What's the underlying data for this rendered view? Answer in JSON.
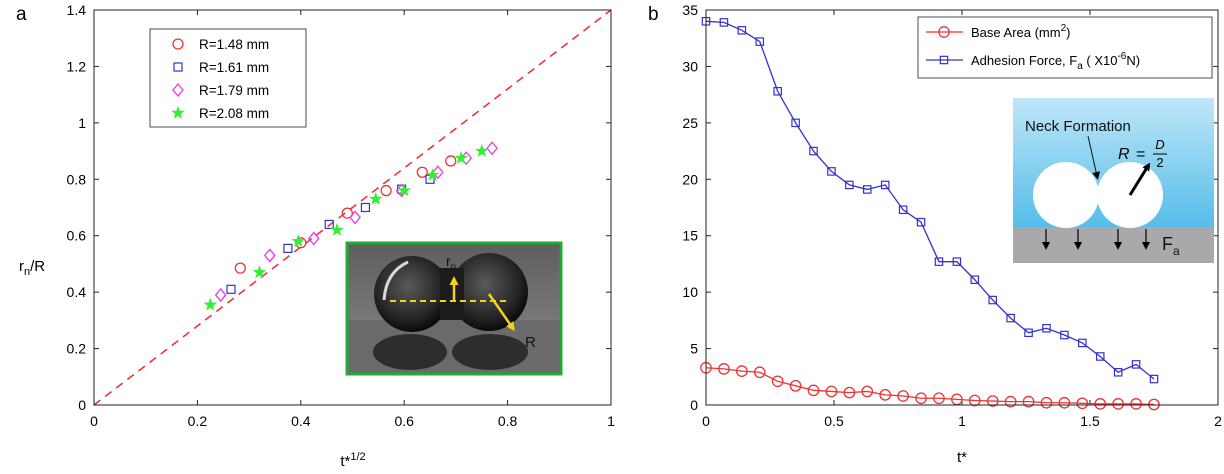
{
  "colors": {
    "r148": "#ee3333",
    "r161": "#3333cc",
    "r179": "#ee33ee",
    "r208": "#33ee33",
    "base_area": "#ee3333",
    "adhesion": "#3333cc",
    "diagonal": "#ee3333",
    "inset_frame": "#22aa33",
    "annot_arrow": "#f2d21a",
    "sky": "#7ecdf1",
    "substrate": "#a9a9a9"
  },
  "chart_data": [
    {
      "panel_label": "a",
      "type": "scatter",
      "xlabel": "t*",
      "xlabel_sup": "1/2",
      "ylabel": "r",
      "ylabel_sub": "n",
      "ylabel_tail": "/R",
      "xlim": [
        0,
        1
      ],
      "ylim": [
        0,
        1.4
      ],
      "xticks": [
        0,
        0.2,
        0.4,
        0.6,
        0.8,
        1
      ],
      "xtick_labels": [
        "0",
        "0.2",
        "0.4",
        "0.6",
        "0.8",
        "1"
      ],
      "yticks": [
        0,
        0.2,
        0.4,
        0.6,
        0.8,
        1,
        1.2,
        1.4
      ],
      "ytick_labels": [
        "0",
        "0.2",
        "0.4",
        "0.6",
        "0.8",
        "1",
        "1.2",
        "1.4"
      ],
      "grid": false,
      "legend_position": "top-left",
      "reference_line": {
        "style": "dashed",
        "from": [
          0,
          0
        ],
        "to": [
          1,
          1.4
        ]
      },
      "series": [
        {
          "name": "R=1.48 mm",
          "marker": "circle",
          "color_key": "r148",
          "x": [
            0.283,
            0.4,
            0.49,
            0.565,
            0.635,
            0.69
          ],
          "y": [
            0.485,
            0.575,
            0.68,
            0.76,
            0.825,
            0.865
          ]
        },
        {
          "name": "R=1.61 mm",
          "marker": "square",
          "color_key": "r161",
          "x": [
            0.265,
            0.375,
            0.455,
            0.525,
            0.595,
            0.65
          ],
          "y": [
            0.41,
            0.555,
            0.64,
            0.7,
            0.765,
            0.8
          ]
        },
        {
          "name": "R=1.79 mm",
          "marker": "diamond",
          "color_key": "r179",
          "x": [
            0.245,
            0.34,
            0.425,
            0.505,
            0.595,
            0.665,
            0.72,
            0.77
          ],
          "y": [
            0.39,
            0.53,
            0.59,
            0.665,
            0.76,
            0.825,
            0.875,
            0.91
          ]
        },
        {
          "name": "R=2.08 mm",
          "marker": "star",
          "color_key": "r208",
          "x": [
            0.225,
            0.32,
            0.395,
            0.47,
            0.545,
            0.6,
            0.655,
            0.71,
            0.75
          ],
          "y": [
            0.355,
            0.47,
            0.58,
            0.62,
            0.73,
            0.76,
            0.815,
            0.875,
            0.9
          ]
        }
      ],
      "inset": {
        "type": "photo",
        "label_rn": "r",
        "label_rn_sub": "n",
        "label_R": "R"
      }
    },
    {
      "panel_label": "b",
      "type": "line",
      "xlabel": "t*",
      "ylabel": "",
      "xlim": [
        0,
        2
      ],
      "ylim": [
        0,
        35
      ],
      "xticks": [
        0,
        0.5,
        1,
        1.5,
        2
      ],
      "xtick_labels": [
        "0",
        "0.5",
        "1",
        "1.5",
        "2"
      ],
      "yticks": [
        0,
        5,
        10,
        15,
        20,
        25,
        30,
        35
      ],
      "ytick_labels": [
        "0",
        "5",
        "10",
        "15",
        "20",
        "25",
        "30",
        "35"
      ],
      "grid": false,
      "legend_position": "top-right",
      "series": [
        {
          "name": "Base Area (mm",
          "name_sup": "2",
          "name_tail": ")",
          "marker": "circle",
          "color_key": "base_area",
          "x": [
            0,
            0.07,
            0.14,
            0.21,
            0.28,
            0.35,
            0.42,
            0.49,
            0.56,
            0.63,
            0.7,
            0.77,
            0.84,
            0.91,
            0.98,
            1.05,
            1.12,
            1.19,
            1.26,
            1.33,
            1.4,
            1.47,
            1.54,
            1.61,
            1.68,
            1.75
          ],
          "y": [
            3.3,
            3.2,
            3.0,
            2.9,
            2.1,
            1.7,
            1.3,
            1.2,
            1.1,
            1.2,
            0.9,
            0.8,
            0.6,
            0.6,
            0.5,
            0.4,
            0.35,
            0.3,
            0.3,
            0.2,
            0.2,
            0.15,
            0.1,
            0.1,
            0.1,
            0.05
          ]
        },
        {
          "name": "Adhesion Force, F",
          "name_sub": "a",
          "name_mid": " ( X10",
          "name_sup": "-6",
          "name_tail": "N)",
          "marker": "square",
          "color_key": "adhesion",
          "x": [
            0,
            0.07,
            0.14,
            0.21,
            0.28,
            0.35,
            0.42,
            0.49,
            0.56,
            0.63,
            0.7,
            0.77,
            0.84,
            0.91,
            0.98,
            1.05,
            1.12,
            1.19,
            1.26,
            1.33,
            1.4,
            1.47,
            1.54,
            1.61,
            1.68,
            1.75
          ],
          "y": [
            34.0,
            33.9,
            33.2,
            32.2,
            27.8,
            25.0,
            22.5,
            20.7,
            19.5,
            19.1,
            19.5,
            17.3,
            16.2,
            12.7,
            12.7,
            11.1,
            9.3,
            7.7,
            6.4,
            6.8,
            6.2,
            5.5,
            4.3,
            2.9,
            3.6,
            2.3
          ]
        }
      ],
      "inset": {
        "type": "schematic",
        "neck_label": "Neck Formation",
        "formula_lhs": "R",
        "formula_eq": "=",
        "formula_num": "D",
        "formula_den": "2",
        "force_label": "F",
        "force_label_sub": "a"
      }
    }
  ]
}
